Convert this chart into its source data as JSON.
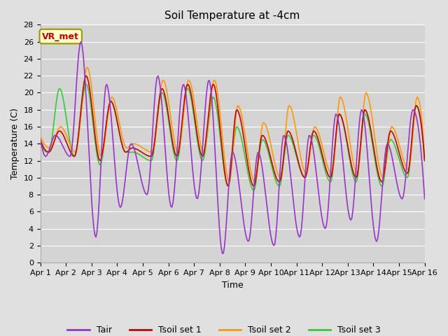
{
  "title": "Soil Temperature at -4cm",
  "xlabel": "Time",
  "ylabel": "Temperature (C)",
  "ylim": [
    0,
    28
  ],
  "yticks": [
    0,
    2,
    4,
    6,
    8,
    10,
    12,
    14,
    16,
    18,
    20,
    22,
    24,
    26,
    28
  ],
  "xtick_labels": [
    "Apr 1",
    "Apr 2",
    "Apr 3",
    "Apr 4",
    "Apr 5",
    "Apr 6",
    "Apr 7",
    "Apr 8",
    "Apr 9",
    "Apr 10",
    "Apr 11",
    "Apr 12",
    "Apr 13",
    "Apr 14",
    "Apr 15",
    "Apr 16"
  ],
  "colors": {
    "Tair": "#9933cc",
    "Tsoil1": "#cc0000",
    "Tsoil2": "#ff9900",
    "Tsoil3": "#33cc33"
  },
  "lw": 1.2,
  "legend_labels": [
    "Tair",
    "Tsoil set 1",
    "Tsoil set 2",
    "Tsoil set 3"
  ],
  "annotation_text": "VR_met",
  "annotation_color": "#cc0000",
  "annotation_bg": "#ffffcc",
  "annotation_edge": "#999900",
  "background_color": "#e0e0e0",
  "plot_bg_color": "#d4d4d4",
  "grid_color": "#ffffff",
  "title_fontsize": 11,
  "axis_fontsize": 9,
  "tick_fontsize": 8,
  "legend_fontsize": 9
}
